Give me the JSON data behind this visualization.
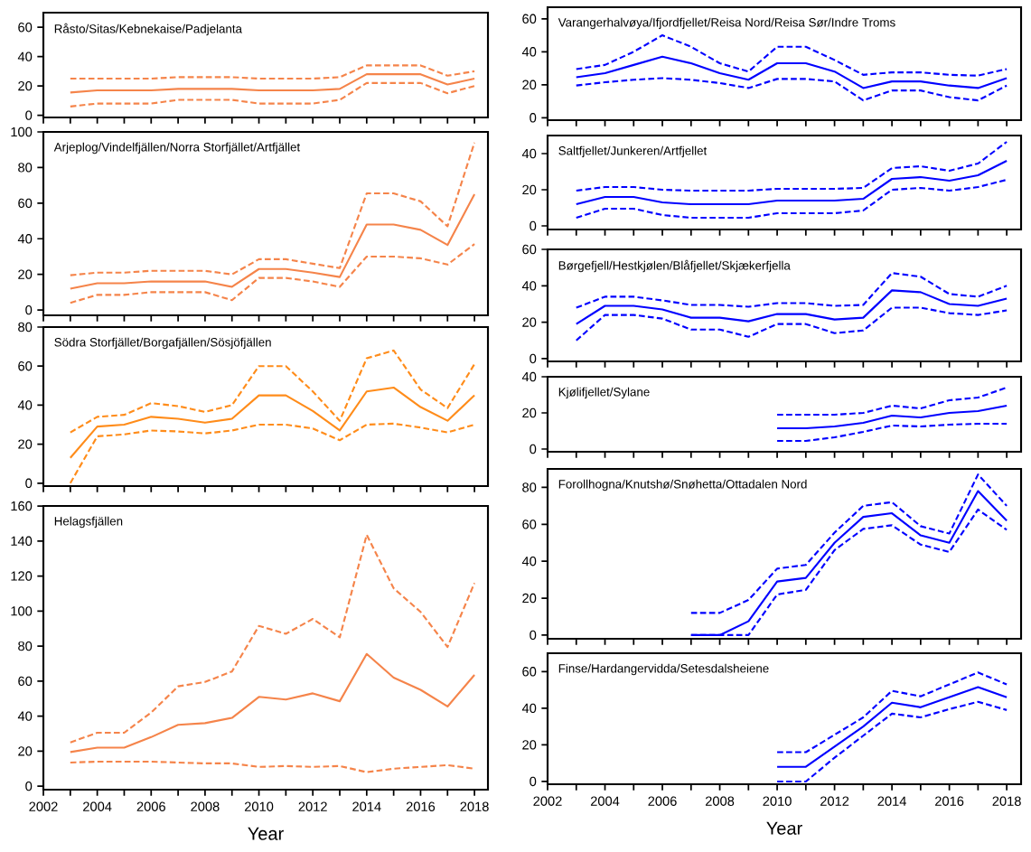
{
  "chart_data": [
    {
      "type": "line",
      "title": "Råsto/Sitas/Kebnekaise/Padjelanta",
      "x": [
        2003,
        2004,
        2005,
        2006,
        2007,
        2008,
        2009,
        2010,
        2011,
        2012,
        2013,
        2014,
        2015,
        2016,
        2017,
        2018
      ],
      "series": [
        {
          "color": "#f5844a",
          "line_style": "solid",
          "values": [
            15.5,
            17,
            17,
            17,
            18,
            18,
            18,
            17,
            17,
            17,
            18,
            28,
            28,
            28,
            21,
            25
          ]
        },
        {
          "color": "#f5844a",
          "line_style": "dashed",
          "values": [
            25,
            25,
            25,
            25,
            26,
            26,
            26,
            25,
            25,
            25,
            26,
            34,
            34,
            34,
            27,
            30
          ]
        },
        {
          "color": "#f5844a",
          "line_style": "dashed",
          "values": [
            6,
            8,
            8,
            8,
            10.5,
            10.5,
            10.5,
            8,
            8,
            8,
            10.5,
            22,
            22,
            22,
            15,
            20
          ]
        }
      ],
      "xlim": [
        2002,
        2018.5
      ],
      "ylim": [
        -1.5,
        70
      ],
      "xticks": [
        2002,
        {
          "value": 2003,
          "label": null
        },
        2004,
        {
          "value": 2005,
          "label": null
        },
        2006,
        {
          "value": 2007,
          "label": null
        },
        2008,
        {
          "value": 2009,
          "label": null
        },
        2010,
        {
          "value": 2011,
          "label": null
        },
        2012,
        {
          "value": 2013,
          "label": null
        },
        2014,
        {
          "value": 2015,
          "label": null
        },
        2016,
        {
          "value": 2017,
          "label": null
        },
        2018
      ],
      "yticks": [
        0,
        20,
        40,
        60
      ],
      "tick_labels": "y"
    },
    {
      "type": "line",
      "title": "Arjeplog/Vindelfjällen/Norra Storfjället/Artfjället",
      "x": [
        2003,
        2004,
        2005,
        2006,
        2007,
        2008,
        2009,
        2010,
        2011,
        2012,
        2013,
        2014,
        2015,
        2016,
        2017,
        2018
      ],
      "series": [
        {
          "color": "#f5844a",
          "line_style": "solid",
          "values": [
            12,
            15,
            15,
            16,
            16,
            16,
            13,
            23,
            23,
            21,
            18.5,
            48,
            48,
            45,
            36.5,
            65
          ]
        },
        {
          "color": "#f5844a",
          "line_style": "dashed",
          "values": [
            19.5,
            21,
            21,
            22,
            22,
            22,
            20,
            28.5,
            28.5,
            26,
            23.5,
            65.5,
            65.5,
            61,
            47,
            94
          ]
        },
        {
          "color": "#f5844a",
          "line_style": "dashed",
          "values": [
            4,
            8.5,
            8.5,
            10,
            10,
            10,
            5.5,
            18,
            18,
            16,
            13,
            30,
            30,
            29,
            25.5,
            37
          ]
        }
      ],
      "xlim": [
        2002,
        2018.5
      ],
      "ylim": [
        -3,
        100
      ],
      "xticks": [
        2002,
        {
          "value": 2003,
          "label": null
        },
        2004,
        {
          "value": 2005,
          "label": null
        },
        2006,
        {
          "value": 2007,
          "label": null
        },
        2008,
        {
          "value": 2009,
          "label": null
        },
        2010,
        {
          "value": 2011,
          "label": null
        },
        2012,
        {
          "value": 2013,
          "label": null
        },
        2014,
        {
          "value": 2015,
          "label": null
        },
        2016,
        {
          "value": 2017,
          "label": null
        },
        2018
      ],
      "yticks": [
        0,
        20,
        40,
        60,
        80,
        100
      ],
      "tick_labels": "y"
    },
    {
      "type": "line",
      "title": "Södra Storfjället/Borgafjällen/Sösjöfjällen",
      "x": [
        2003,
        2004,
        2005,
        2006,
        2007,
        2008,
        2009,
        2010,
        2011,
        2012,
        2013,
        2014,
        2015,
        2016,
        2017,
        2018
      ],
      "series": [
        {
          "color": "#ff8c1a",
          "line_style": "solid",
          "values": [
            13,
            29,
            30,
            34,
            33,
            31,
            33,
            45,
            45,
            37,
            27,
            47,
            49,
            39,
            32,
            45
          ]
        },
        {
          "color": "#ff8c1a",
          "line_style": "dashed",
          "values": [
            26,
            34,
            35,
            41,
            39.5,
            36.5,
            40,
            60,
            60,
            47,
            32,
            64,
            68,
            48,
            38.5,
            61
          ]
        },
        {
          "color": "#ff8c1a",
          "line_style": "dashed",
          "values": [
            0,
            24,
            25,
            27,
            26.5,
            25.5,
            27,
            30,
            30,
            28,
            22,
            30,
            30.5,
            28.5,
            26,
            30
          ]
        }
      ],
      "xlim": [
        2002,
        2018.5
      ],
      "ylim": [
        -1.5,
        80
      ],
      "xticks": [
        2002,
        {
          "value": 2003,
          "label": null
        },
        2004,
        {
          "value": 2005,
          "label": null
        },
        2006,
        {
          "value": 2007,
          "label": null
        },
        2008,
        {
          "value": 2009,
          "label": null
        },
        2010,
        {
          "value": 2011,
          "label": null
        },
        2012,
        {
          "value": 2013,
          "label": null
        },
        2014,
        {
          "value": 2015,
          "label": null
        },
        2016,
        {
          "value": 2017,
          "label": null
        },
        2018
      ],
      "yticks": [
        0,
        20,
        40,
        60,
        80
      ],
      "tick_labels": "y"
    },
    {
      "type": "line",
      "title": "Helagsfjällen",
      "xlabel": "Year",
      "x": [
        2003,
        2004,
        2005,
        2006,
        2007,
        2008,
        2009,
        2010,
        2011,
        2012,
        2013,
        2014,
        2015,
        2016,
        2017,
        2018
      ],
      "series": [
        {
          "color": "#f5844a",
          "line_style": "solid",
          "values": [
            19.5,
            22,
            22,
            28,
            35,
            36,
            39,
            51,
            49.5,
            53,
            48.5,
            75.5,
            62,
            55,
            45.5,
            63.5
          ]
        },
        {
          "color": "#f5844a",
          "line_style": "dashed",
          "values": [
            25,
            30.5,
            30.5,
            42,
            57,
            59.5,
            65.5,
            91.5,
            87,
            95.5,
            85,
            143.5,
            113,
            99.5,
            79.5,
            116
          ]
        },
        {
          "color": "#f5844a",
          "line_style": "dashed",
          "values": [
            13.5,
            14,
            14,
            14,
            13.5,
            13,
            13,
            11,
            11.5,
            11,
            11.5,
            8,
            10,
            11,
            12,
            10
          ]
        }
      ],
      "xlim": [
        2002,
        2018.5
      ],
      "ylim": [
        -2,
        160
      ],
      "xticks": [
        2002,
        {
          "value": 2003,
          "label": null
        },
        2004,
        {
          "value": 2005,
          "label": null
        },
        2006,
        {
          "value": 2007,
          "label": null
        },
        2008,
        {
          "value": 2009,
          "label": null
        },
        2010,
        {
          "value": 2011,
          "label": null
        },
        2012,
        {
          "value": 2013,
          "label": null
        },
        2014,
        {
          "value": 2015,
          "label": null
        },
        2016,
        {
          "value": 2017,
          "label": null
        },
        2018
      ],
      "yticks": [
        0,
        20,
        40,
        60,
        80,
        100,
        120,
        140,
        160
      ]
    },
    {
      "type": "line",
      "title": "Varangerhalvøya/Ifjordfjellet/Reisa Nord/Reisa Sør/Indre Troms",
      "x": [
        2003,
        2004,
        2005,
        2006,
        2007,
        2008,
        2009,
        2010,
        2011,
        2012,
        2013,
        2014,
        2015,
        2016,
        2017,
        2018
      ],
      "series": [
        {
          "color": "#0000ff",
          "line_style": "solid",
          "values": [
            24.5,
            27,
            32,
            37,
            33,
            27,
            23,
            33,
            33,
            28,
            18,
            22,
            22,
            19.5,
            18,
            24
          ]
        },
        {
          "color": "#0000ff",
          "line_style": "dashed",
          "values": [
            29.5,
            32,
            40,
            50,
            43,
            33,
            28,
            43,
            43,
            35,
            26,
            27.5,
            27.5,
            26,
            25.5,
            29.5
          ]
        },
        {
          "color": "#0000ff",
          "line_style": "dashed",
          "values": [
            19.5,
            21.5,
            23,
            24,
            23,
            21,
            18,
            23.5,
            23.5,
            22,
            10.5,
            16.5,
            16.5,
            12.5,
            10.5,
            19.5
          ]
        }
      ],
      "xlim": [
        2002,
        2018.5
      ],
      "ylim": [
        -1.5,
        67
      ],
      "xticks": [
        2002,
        {
          "value": 2003,
          "label": null
        },
        2004,
        {
          "value": 2005,
          "label": null
        },
        2006,
        {
          "value": 2007,
          "label": null
        },
        2008,
        {
          "value": 2009,
          "label": null
        },
        2010,
        {
          "value": 2011,
          "label": null
        },
        2012,
        {
          "value": 2013,
          "label": null
        },
        2014,
        {
          "value": 2015,
          "label": null
        },
        2016,
        {
          "value": 2017,
          "label": null
        },
        2018
      ],
      "yticks": [
        0,
        20,
        40,
        60
      ],
      "tick_labels": "y"
    },
    {
      "type": "line",
      "title": "Saltfjellet/Junkeren/Artfjellet",
      "x": [
        2003,
        2004,
        2005,
        2006,
        2007,
        2008,
        2009,
        2010,
        2011,
        2012,
        2013,
        2014,
        2015,
        2016,
        2017,
        2018
      ],
      "series": [
        {
          "color": "#0000ff",
          "line_style": "solid",
          "values": [
            12,
            16,
            16,
            13,
            12,
            12,
            12,
            14,
            14,
            14,
            15,
            26,
            27,
            25,
            28,
            36
          ]
        },
        {
          "color": "#0000ff",
          "line_style": "dashed",
          "values": [
            19.5,
            21.5,
            21.5,
            20,
            19.5,
            19.5,
            19.5,
            20.5,
            20.5,
            20.5,
            21,
            32,
            33,
            30.5,
            34.5,
            46.5
          ]
        },
        {
          "color": "#0000ff",
          "line_style": "dashed",
          "values": [
            4.5,
            9.5,
            9.5,
            6,
            4.5,
            4.5,
            4.5,
            7,
            7,
            7,
            8.5,
            20,
            21,
            19.5,
            21.5,
            25.5
          ]
        }
      ],
      "xlim": [
        2002,
        2018.5
      ],
      "ylim": [
        -2,
        50
      ],
      "xticks": [
        2002,
        {
          "value": 2003,
          "label": null
        },
        2004,
        {
          "value": 2005,
          "label": null
        },
        2006,
        {
          "value": 2007,
          "label": null
        },
        2008,
        {
          "value": 2009,
          "label": null
        },
        2010,
        {
          "value": 2011,
          "label": null
        },
        2012,
        {
          "value": 2013,
          "label": null
        },
        2014,
        {
          "value": 2015,
          "label": null
        },
        2016,
        {
          "value": 2017,
          "label": null
        },
        2018
      ],
      "yticks": [
        0,
        20,
        40
      ],
      "tick_labels": "y"
    },
    {
      "type": "line",
      "title": "Børgefjell/Hestkjølen/Blåfjellet/Skjækerfjella",
      "x": [
        2003,
        2004,
        2005,
        2006,
        2007,
        2008,
        2009,
        2010,
        2011,
        2012,
        2013,
        2014,
        2015,
        2016,
        2017,
        2018
      ],
      "series": [
        {
          "color": "#0000ff",
          "line_style": "solid",
          "values": [
            19,
            29,
            29,
            27,
            22.5,
            22.5,
            20.5,
            24.5,
            24.5,
            21.5,
            22.5,
            37.5,
            36.5,
            30,
            29,
            33
          ]
        },
        {
          "color": "#0000ff",
          "line_style": "dashed",
          "values": [
            28,
            34,
            34,
            32,
            29.5,
            29.5,
            28.5,
            30.5,
            30.5,
            29,
            29.5,
            47,
            45,
            35.5,
            34,
            40
          ]
        },
        {
          "color": "#0000ff",
          "line_style": "dashed",
          "values": [
            10,
            24,
            24,
            22,
            16,
            16,
            12,
            19,
            19,
            14,
            15.5,
            28,
            28,
            25,
            24,
            26.5
          ]
        }
      ],
      "xlim": [
        2002,
        2018.5
      ],
      "ylim": [
        -1.5,
        60
      ],
      "xticks": [
        2002,
        {
          "value": 2003,
          "label": null
        },
        2004,
        {
          "value": 2005,
          "label": null
        },
        2006,
        {
          "value": 2007,
          "label": null
        },
        2008,
        {
          "value": 2009,
          "label": null
        },
        2010,
        {
          "value": 2011,
          "label": null
        },
        2012,
        {
          "value": 2013,
          "label": null
        },
        2014,
        {
          "value": 2015,
          "label": null
        },
        2016,
        {
          "value": 2017,
          "label": null
        },
        2018
      ],
      "yticks": [
        0,
        20,
        40,
        60
      ],
      "tick_labels": "y"
    },
    {
      "type": "line",
      "title": "Kjølifjellet/Sylane",
      "series": [
        {
          "color": "#0000ff",
          "line_style": "solid",
          "x": [
            2010,
            2011,
            2012,
            2013,
            2014,
            2015,
            2016,
            2017,
            2018
          ],
          "values": [
            11.5,
            11.5,
            12.5,
            14.5,
            18.5,
            17.5,
            20,
            21,
            24
          ]
        },
        {
          "color": "#0000ff",
          "line_style": "dashed",
          "x": [
            2010,
            2011,
            2012,
            2013,
            2014,
            2015,
            2016,
            2017,
            2018
          ],
          "values": [
            19,
            19,
            19,
            20,
            24,
            22.5,
            27,
            28.5,
            34
          ]
        },
        {
          "color": "#0000ff",
          "line_style": "dashed",
          "x": [
            2010,
            2011,
            2012,
            2013,
            2014,
            2015,
            2016,
            2017,
            2018
          ],
          "values": [
            4.5,
            4.5,
            6.5,
            9.5,
            13,
            12.5,
            13.5,
            14,
            14
          ]
        }
      ],
      "xlim": [
        2002,
        2018.5
      ],
      "ylim": [
        -1.5,
        40
      ],
      "xticks": [
        2002,
        {
          "value": 2003,
          "label": null
        },
        2004,
        {
          "value": 2005,
          "label": null
        },
        2006,
        {
          "value": 2007,
          "label": null
        },
        2008,
        {
          "value": 2009,
          "label": null
        },
        2010,
        {
          "value": 2011,
          "label": null
        },
        2012,
        {
          "value": 2013,
          "label": null
        },
        2014,
        {
          "value": 2015,
          "label": null
        },
        2016,
        {
          "value": 2017,
          "label": null
        },
        2018
      ],
      "yticks": [
        0,
        20,
        40
      ],
      "tick_labels": "y"
    },
    {
      "type": "line",
      "title": "Forollhogna/Knutshø/Snøhetta/Ottadalen Nord",
      "series": [
        {
          "color": "#0000ff",
          "line_style": "solid",
          "x": [
            2007,
            2008,
            2009,
            2010,
            2011,
            2012,
            2013,
            2014,
            2015,
            2016,
            2017,
            2018
          ],
          "values": [
            0,
            0,
            7.5,
            29,
            31,
            50,
            64,
            66,
            54,
            50,
            78,
            62
          ]
        },
        {
          "color": "#0000ff",
          "line_style": "dashed",
          "x": [
            2007,
            2008,
            2009,
            2010,
            2011,
            2012,
            2013,
            2014,
            2015,
            2016,
            2017,
            2018
          ],
          "values": [
            12,
            12,
            19,
            36,
            38,
            55.5,
            70,
            72,
            59,
            55,
            87,
            70
          ]
        },
        {
          "color": "#0000ff",
          "line_style": "dashed",
          "x": [
            2007,
            2008,
            2009,
            2010,
            2011,
            2012,
            2013,
            2014,
            2015,
            2016,
            2017,
            2018
          ],
          "values": [
            0,
            0,
            0,
            22,
            24.5,
            46,
            57.5,
            59.5,
            49,
            45,
            68,
            57
          ]
        }
      ],
      "xlim": [
        2002,
        2018.5
      ],
      "ylim": [
        -2,
        90
      ],
      "xticks": [
        2002,
        {
          "value": 2003,
          "label": null
        },
        2004,
        {
          "value": 2005,
          "label": null
        },
        2006,
        {
          "value": 2007,
          "label": null
        },
        2008,
        {
          "value": 2009,
          "label": null
        },
        2010,
        {
          "value": 2011,
          "label": null
        },
        2012,
        {
          "value": 2013,
          "label": null
        },
        2014,
        {
          "value": 2015,
          "label": null
        },
        2016,
        {
          "value": 2017,
          "label": null
        },
        2018
      ],
      "yticks": [
        0,
        20,
        40,
        60,
        80
      ],
      "tick_labels": "y"
    },
    {
      "type": "line",
      "title": "Finse/Hardangervidda/Setesdalsheiene",
      "xlabel": "Year",
      "series": [
        {
          "color": "#0000ff",
          "line_style": "solid",
          "x": [
            2010,
            2011,
            2012,
            2013,
            2014,
            2015,
            2016,
            2017,
            2018
          ],
          "values": [
            8,
            8,
            19,
            30,
            43,
            40.5,
            46,
            51.5,
            46
          ]
        },
        {
          "color": "#0000ff",
          "line_style": "dashed",
          "x": [
            2010,
            2011,
            2012,
            2013,
            2014,
            2015,
            2016,
            2017,
            2018
          ],
          "values": [
            16,
            16,
            25.5,
            35,
            49.5,
            46.5,
            53,
            59.5,
            53
          ]
        },
        {
          "color": "#0000ff",
          "line_style": "dashed",
          "x": [
            2010,
            2011,
            2012,
            2013,
            2014,
            2015,
            2016,
            2017,
            2018
          ],
          "values": [
            0,
            0,
            13,
            25,
            37,
            35,
            39.5,
            43.5,
            39
          ]
        }
      ],
      "xlim": [
        2002,
        2018.5
      ],
      "ylim": [
        -1.5,
        70
      ],
      "xticks": [
        2002,
        {
          "value": 2003,
          "label": null
        },
        2004,
        {
          "value": 2005,
          "label": null
        },
        2006,
        {
          "value": 2007,
          "label": null
        },
        2008,
        {
          "value": 2009,
          "label": null
        },
        2010,
        {
          "value": 2011,
          "label": null
        },
        2012,
        {
          "value": 2013,
          "label": null
        },
        2014,
        {
          "value": 2015,
          "label": null
        },
        2016,
        {
          "value": 2017,
          "label": null
        },
        2018
      ],
      "yticks": [
        0,
        20,
        40,
        60
      ]
    }
  ]
}
